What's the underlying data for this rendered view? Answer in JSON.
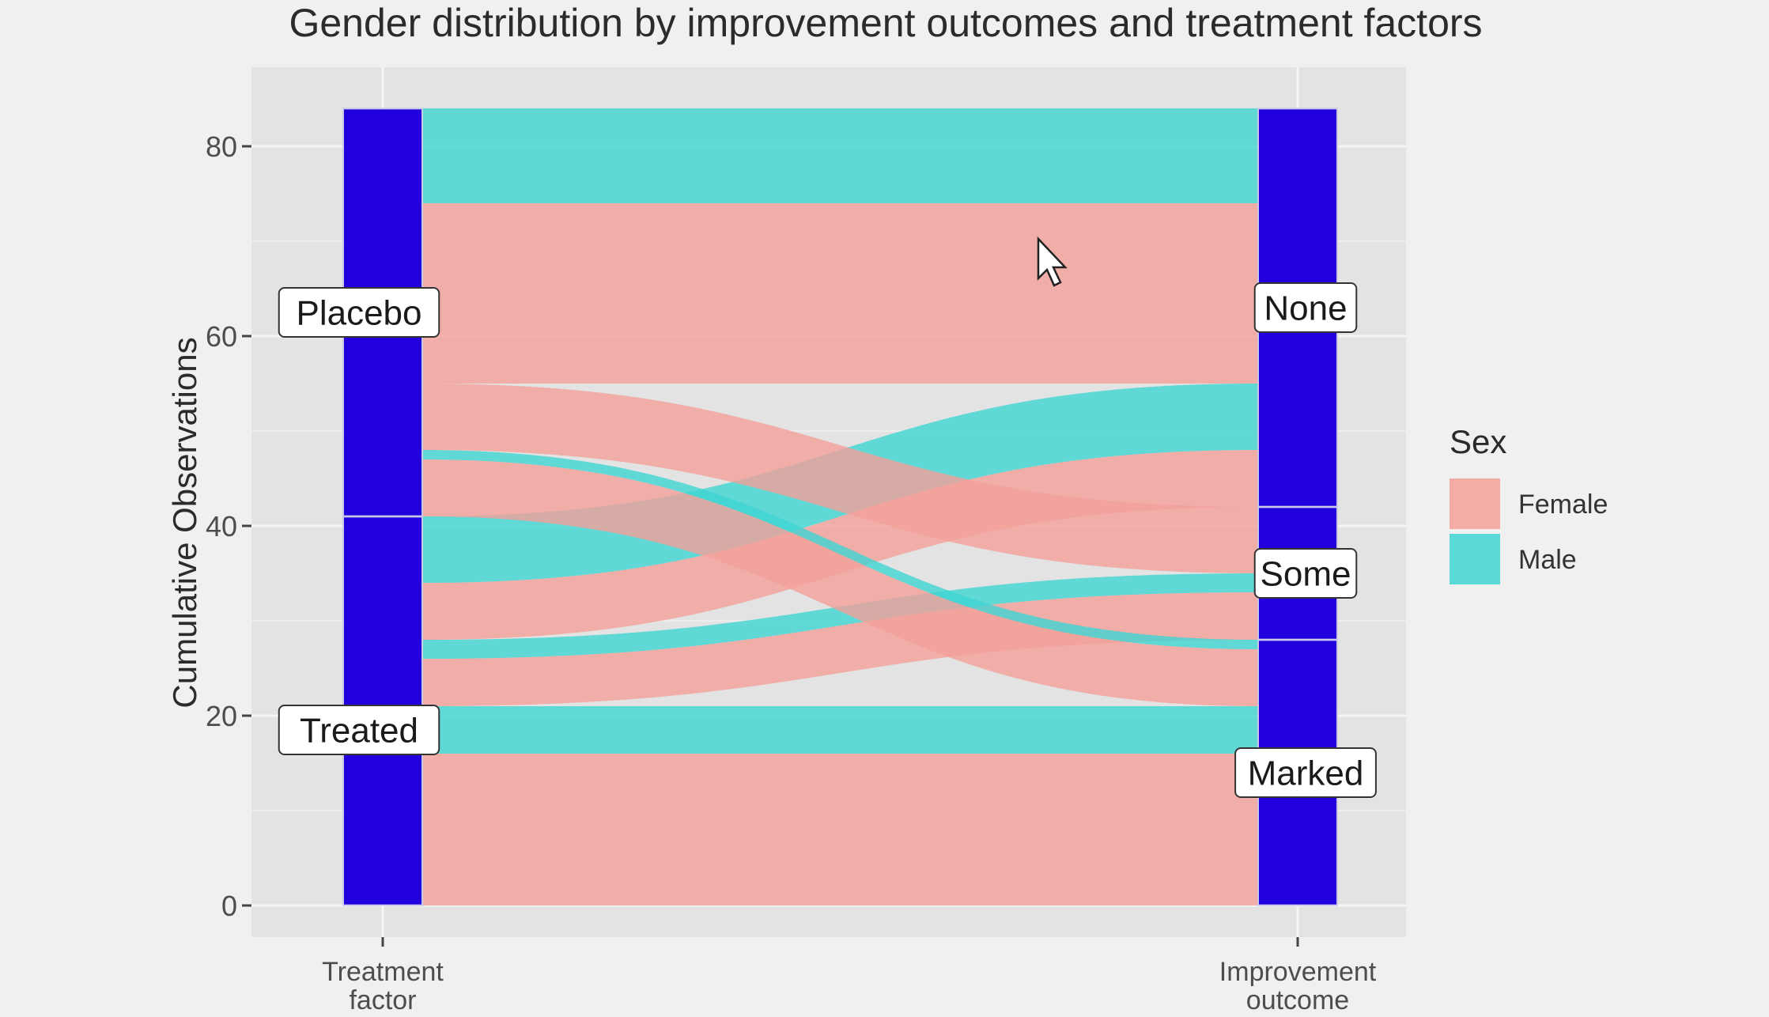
{
  "chart_data": {
    "type": "alluvial",
    "title": "Gender distribution by improvement outcomes and treatment factors",
    "ylabel": "Cumulative Observations",
    "ylim": [
      0,
      84
    ],
    "yticks": [
      0,
      20,
      40,
      60,
      80
    ],
    "axes": [
      "Treatment\nfactor",
      "Improvement\noutcome"
    ],
    "legend": {
      "title": "Sex",
      "position": "right",
      "entries": [
        {
          "label": "Female",
          "color": "#f4a09a"
        },
        {
          "label": "Male",
          "color": "#3fd5d2"
        }
      ]
    },
    "strata": {
      "treatment": [
        {
          "label": "Treated",
          "from": 0,
          "to": 41
        },
        {
          "label": "Placebo",
          "from": 41,
          "to": 84
        }
      ],
      "improvement": [
        {
          "label": "Marked",
          "from": 0,
          "to": 28
        },
        {
          "label": "Some",
          "from": 28,
          "to": 42
        },
        {
          "label": "None",
          "from": 42,
          "to": 84
        }
      ]
    },
    "flows": [
      {
        "sex": "Female",
        "treatment": "Treated",
        "improvement": "Marked",
        "value": 16
      },
      {
        "sex": "Male",
        "treatment": "Treated",
        "improvement": "Marked",
        "value": 5
      },
      {
        "sex": "Female",
        "treatment": "Treated",
        "improvement": "Some",
        "value": 5
      },
      {
        "sex": "Male",
        "treatment": "Treated",
        "improvement": "Some",
        "value": 2
      },
      {
        "sex": "Female",
        "treatment": "Treated",
        "improvement": "None",
        "value": 6
      },
      {
        "sex": "Male",
        "treatment": "Treated",
        "improvement": "None",
        "value": 7
      },
      {
        "sex": "Female",
        "treatment": "Placebo",
        "improvement": "Marked",
        "value": 6
      },
      {
        "sex": "Male",
        "treatment": "Placebo",
        "improvement": "Marked",
        "value": 1
      },
      {
        "sex": "Female",
        "treatment": "Placebo",
        "improvement": "Some",
        "value": 7
      },
      {
        "sex": "Male",
        "treatment": "Placebo",
        "improvement": "Some",
        "value": 0
      },
      {
        "sex": "Female",
        "treatment": "Placebo",
        "improvement": "None",
        "value": 19
      },
      {
        "sex": "Male",
        "treatment": "Placebo",
        "improvement": "None",
        "value": 10
      }
    ],
    "grid": true,
    "stratum_color": "#2200dd"
  }
}
